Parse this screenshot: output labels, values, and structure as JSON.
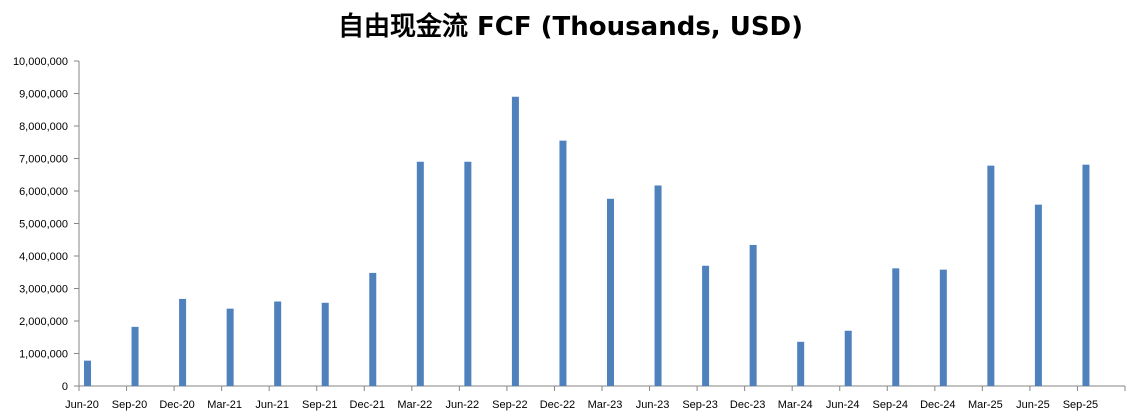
{
  "chart_data": {
    "type": "bar",
    "title": "自由现金流 FCF (Thousands, USD)",
    "xlabel": "",
    "ylabel": "",
    "ylim": [
      0,
      10000000
    ],
    "yticks": [
      0,
      1000000,
      2000000,
      3000000,
      4000000,
      5000000,
      6000000,
      7000000,
      8000000,
      9000000,
      10000000
    ],
    "ytick_labels": [
      "0",
      "1,000,000",
      "2,000,000",
      "3,000,000",
      "4,000,000",
      "5,000,000",
      "6,000,000",
      "7,000,000",
      "8,000,000",
      "9,000,000",
      "10,000,000"
    ],
    "categories": [
      "Jun-20",
      "Sep-20",
      "Dec-20",
      "Mar-21",
      "Jun-21",
      "Sep-21",
      "Dec-21",
      "Mar-22",
      "Jun-22",
      "Sep-22",
      "Dec-22",
      "Mar-23",
      "Jun-23",
      "Sep-23",
      "Dec-23",
      "Mar-24",
      "Jun-24",
      "Sep-24",
      "Dec-24",
      "Mar-25",
      "Jun-25",
      "Sep-25"
    ],
    "values": [
      780000,
      1820000,
      2680000,
      2380000,
      2600000,
      2560000,
      3480000,
      6900000,
      6900000,
      8900000,
      7550000,
      5760000,
      6170000,
      3700000,
      4340000,
      1360000,
      1700000,
      3620000,
      3580000,
      6780000,
      5580000,
      6810000
    ],
    "bar_color": "#4F81BD",
    "axis_color": "#868686",
    "grid": false,
    "legend": "none"
  }
}
